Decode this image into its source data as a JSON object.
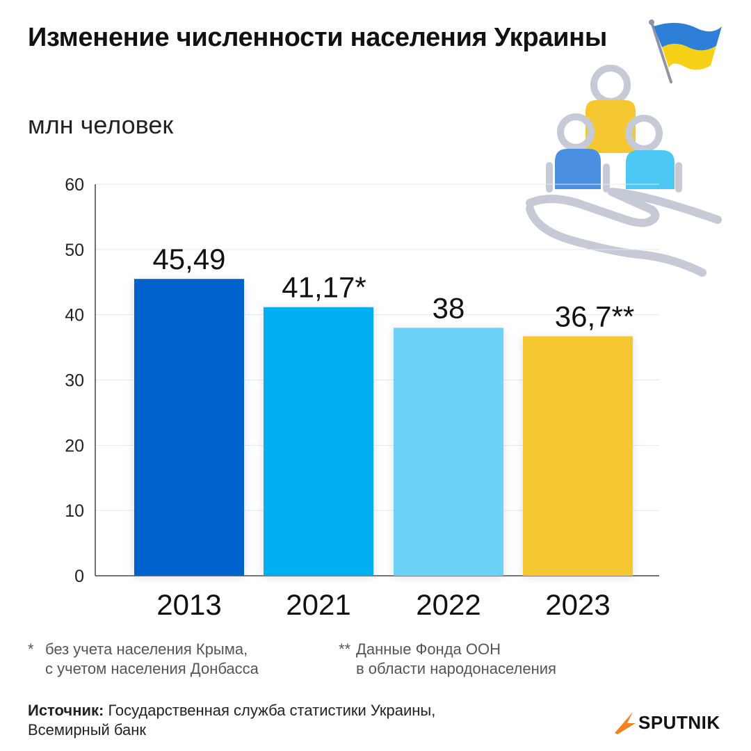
{
  "title": "Изменение численности населения Украины",
  "subtitle": "млн человек",
  "chart_data": {
    "type": "bar",
    "title": "Изменение численности населения Украины",
    "ylabel": "млн человек",
    "xlabel": "",
    "ylim": [
      0,
      60
    ],
    "yticks": [
      0,
      10,
      20,
      30,
      40,
      50,
      60
    ],
    "grid": true,
    "categories": [
      "2013",
      "2021",
      "2022",
      "2023"
    ],
    "values": [
      45.49,
      41.17,
      38,
      36.7
    ],
    "labels": [
      "45,49",
      "41,17*",
      "38",
      "36,7**"
    ],
    "colors": [
      "#0062cc",
      "#00b0f0",
      "#6cd3f7",
      "#f5c832"
    ]
  },
  "footnotes": [
    {
      "mark": "*",
      "lines": [
        "без учета населения Крыма,",
        "с учетом населения Донбасса"
      ]
    },
    {
      "mark": "**",
      "lines": [
        "Данные Фонда ООН",
        "в области народонаселения"
      ]
    }
  ],
  "source": {
    "label": "Источник:",
    "lines": [
      "Государственная служба статистики Украины,",
      "Всемирный банк"
    ]
  },
  "brand": "SPUTNIK",
  "flag_colors": [
    "#2d7fd8",
    "#f7d117"
  ]
}
